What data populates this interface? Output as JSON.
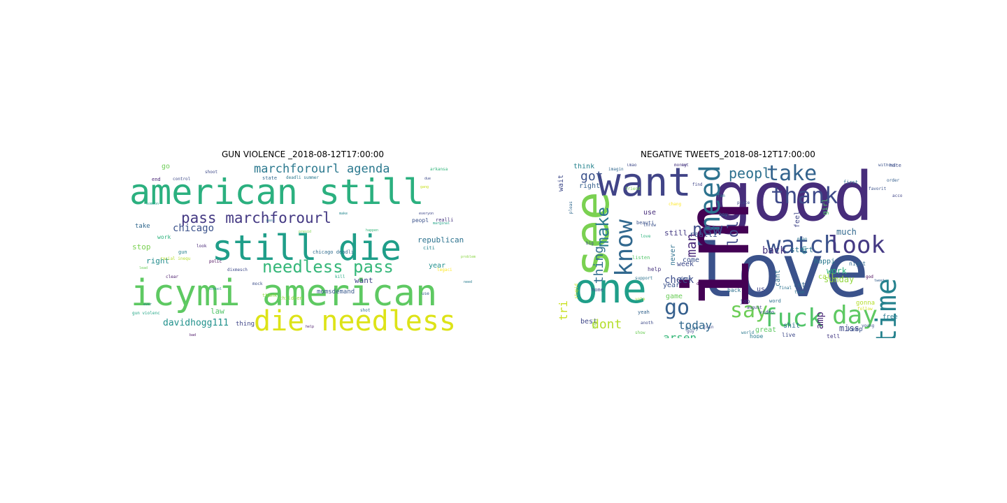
{
  "figure": {
    "panels": [
      {
        "title": "GUN VIOLENCE _2018-08-12T17:00:00"
      },
      {
        "title": "NEGATIVE TWEETS_2018-08-12T17:00:00"
      }
    ]
  },
  "wordclouds": [
    {
      "words": [
        {
          "text": "american still",
          "color": "#2bb07f"
        },
        {
          "text": "still die",
          "color": "#1f9e89"
        },
        {
          "text": "icymi american",
          "color": "#5ec962"
        },
        {
          "text": "die needless",
          "color": "#dde318"
        },
        {
          "text": "needless pass",
          "color": "#35b779"
        },
        {
          "text": "pass marchforourl",
          "color": "#443983"
        },
        {
          "text": "marchforourl agenda",
          "color": "#2a788e"
        },
        {
          "text": "davidhogg111",
          "color": "#21918c"
        },
        {
          "text": "chicago",
          "color": "#3b528b"
        },
        {
          "text": "republican",
          "color": "#2c728e"
        },
        {
          "text": "stop",
          "color": "#7ad151"
        },
        {
          "text": "right",
          "color": "#228c8d"
        },
        {
          "text": "law",
          "color": "#52c569"
        },
        {
          "text": "year",
          "color": "#218f8d"
        },
        {
          "text": "want",
          "color": "#414487"
        },
        {
          "text": "momsdemand",
          "color": "#38598c"
        },
        {
          "text": "go",
          "color": "#6ece58"
        },
        {
          "text": "take",
          "color": "#31688e"
        },
        {
          "text": "work",
          "color": "#2db27d"
        },
        {
          "text": "gun",
          "color": "#26828e"
        },
        {
          "text": "end",
          "color": "#482475"
        },
        {
          "text": "state",
          "color": "#31688e"
        },
        {
          "text": "control",
          "color": "#3e4a89"
        },
        {
          "text": "children",
          "color": "#93d741"
        },
        {
          "text": "thank",
          "color": "#8fd744"
        },
        {
          "text": "thing",
          "color": "#404688"
        },
        {
          "text": "peopl",
          "color": "#3b528b"
        },
        {
          "text": "use",
          "color": "#355f8d"
        },
        {
          "text": "citi",
          "color": "#25838e"
        },
        {
          "text": "realli",
          "color": "#46337e"
        },
        {
          "text": "chicago deadli",
          "color": "#2f6c8e"
        },
        {
          "text": "racial inequ",
          "color": "#b5de2b"
        },
        {
          "text": "shoot",
          "color": "#3e4a89"
        },
        {
          "text": "gun violenc",
          "color": "#21a685"
        },
        {
          "text": "polic",
          "color": "#440154"
        },
        {
          "text": "deadli summer",
          "color": "#2a788e"
        },
        {
          "text": "school",
          "color": "#26818e"
        },
        {
          "text": "gang",
          "color": "#c8e020"
        },
        {
          "text": "legaci",
          "color": "#fde725"
        },
        {
          "text": "dixmesch",
          "color": "#3e4989"
        },
        {
          "text": "look",
          "color": "#482878"
        },
        {
          "text": "mock",
          "color": "#3d4e8a"
        },
        {
          "text": "clear",
          "color": "#48186a"
        },
        {
          "text": "shot",
          "color": "#2e6f8e"
        },
        {
          "text": "arkansa",
          "color": "#31b57b"
        },
        {
          "text": "problem",
          "color": "#8bd646"
        },
        {
          "text": "need",
          "color": "#287c8e"
        },
        {
          "text": "kill",
          "color": "#23a983"
        },
        {
          "text": "lead",
          "color": "#6ccd5a"
        },
        {
          "text": "bad",
          "color": "#471063"
        },
        {
          "text": "someon",
          "color": "#1fa088"
        },
        {
          "text": "marginal",
          "color": "#20a386"
        },
        {
          "text": "everyon",
          "color": "#3f4889"
        },
        {
          "text": "make",
          "color": "#24878e"
        },
        {
          "text": "happen",
          "color": "#35b779"
        },
        {
          "text": "presid",
          "color": "#7fd34e"
        },
        {
          "text": "due",
          "color": "#3e4c8a"
        },
        {
          "text": "mass",
          "color": "#2d708e"
        },
        {
          "text": "help",
          "color": "#481769"
        },
        {
          "text": "ever",
          "color": "#277f8e"
        }
      ]
    },
    {
      "words": [
        {
          "text": "good",
          "color": "#472d7b"
        },
        {
          "text": "love",
          "color": "#3b528b"
        },
        {
          "text": "im",
          "color": "#440154"
        },
        {
          "text": "want",
          "color": "#414487"
        },
        {
          "text": "see",
          "color": "#7ad151"
        },
        {
          "text": "one",
          "color": "#1f9e89"
        },
        {
          "text": "need",
          "color": "#2c728e"
        },
        {
          "text": "know",
          "color": "#31688e"
        },
        {
          "text": "take",
          "color": "#33638d"
        },
        {
          "text": "watch",
          "color": "#3b528b"
        },
        {
          "text": "thank",
          "color": "#3e4a89"
        },
        {
          "text": "look",
          "color": "#443983"
        },
        {
          "text": "day",
          "color": "#5ec962"
        },
        {
          "text": "time",
          "color": "#26828e"
        },
        {
          "text": "fuck",
          "color": "#52c569"
        },
        {
          "text": "say",
          "color": "#6ece58"
        },
        {
          "text": "go",
          "color": "#355f8d"
        },
        {
          "text": "make",
          "color": "#2a788e"
        },
        {
          "text": "new",
          "color": "#3e4c8a"
        },
        {
          "text": "peopl",
          "color": "#2d708e"
        },
        {
          "text": "got",
          "color": "#3b528b"
        },
        {
          "text": "lol",
          "color": "#3f4889"
        },
        {
          "text": "man",
          "color": "#482878"
        },
        {
          "text": "thing",
          "color": "#2f6c8e"
        },
        {
          "text": "dont",
          "color": "#b5de2b"
        },
        {
          "text": "today",
          "color": "#31688e"
        },
        {
          "text": "arsen",
          "color": "#35b779"
        },
        {
          "text": "back",
          "color": "#46337e"
        },
        {
          "text": "work",
          "color": "#2db27d"
        },
        {
          "text": "amp",
          "color": "#482475"
        },
        {
          "text": "check",
          "color": "#3d4e8a"
        },
        {
          "text": "tri",
          "color": "#c8e020"
        },
        {
          "text": "think",
          "color": "#25838e"
        },
        {
          "text": "right",
          "color": "#355f8d"
        },
        {
          "text": "wait",
          "color": "#3e4989"
        },
        {
          "text": "still",
          "color": "#443983"
        },
        {
          "text": "realli",
          "color": "#3b528b"
        },
        {
          "text": "much",
          "color": "#31688e"
        },
        {
          "text": "start",
          "color": "#2c728e"
        },
        {
          "text": "sunday",
          "color": "#93d741"
        },
        {
          "text": "miss",
          "color": "#3f4889"
        },
        {
          "text": "great",
          "color": "#5ec962"
        },
        {
          "text": "happi",
          "color": "#2a788e"
        },
        {
          "text": "call",
          "color": "#a0da39"
        },
        {
          "text": "let",
          "color": "#33638d"
        },
        {
          "text": "us",
          "color": "#404688"
        },
        {
          "text": "oh",
          "color": "#287c8e"
        },
        {
          "text": "cant",
          "color": "#2e6f8e"
        },
        {
          "text": "girl",
          "color": "#52c569"
        },
        {
          "text": "year",
          "color": "#3b528b"
        },
        {
          "text": "week",
          "color": "#3e4a89"
        },
        {
          "text": "feel",
          "color": "#404688"
        },
        {
          "text": "game",
          "color": "#6ccd5a"
        },
        {
          "text": "never",
          "color": "#2d708e"
        },
        {
          "text": "best",
          "color": "#3f4788"
        },
        {
          "text": "play",
          "color": "#31688e"
        },
        {
          "text": "come",
          "color": "#3b528b"
        },
        {
          "text": "don",
          "color": "#440154"
        },
        {
          "text": "use",
          "color": "#472d7b"
        },
        {
          "text": "shit",
          "color": "#2c728e"
        },
        {
          "text": "free",
          "color": "#2a788e"
        },
        {
          "text": "help",
          "color": "#46337e"
        },
        {
          "text": "keep",
          "color": "#3b528b"
        },
        {
          "text": "tweet",
          "color": "#355f8d"
        },
        {
          "text": "home",
          "color": "#3e4c8a"
        },
        {
          "text": "job",
          "color": "#3f4889"
        },
        {
          "text": "back",
          "color": "#2d708e"
        },
        {
          "text": "hope",
          "color": "#287c8e"
        },
        {
          "text": "live",
          "color": "#3e4989"
        },
        {
          "text": "night",
          "color": "#31688e"
        },
        {
          "text": "first",
          "color": "#2e6f8e"
        },
        {
          "text": "done",
          "color": "#3b528b"
        },
        {
          "text": "listen",
          "color": "#52c569"
        },
        {
          "text": "yeah",
          "color": "#33638d"
        },
        {
          "text": "lot",
          "color": "#443983"
        },
        {
          "text": "find",
          "color": "#404688"
        },
        {
          "text": "fan",
          "color": "#2a788e"
        },
        {
          "text": "place",
          "color": "#3e4a89"
        },
        {
          "text": "boy",
          "color": "#31688e"
        },
        {
          "text": "order",
          "color": "#355f8d"
        },
        {
          "text": "final",
          "color": "#2c728e"
        },
        {
          "text": "video",
          "color": "#3b528b"
        },
        {
          "text": "hate",
          "color": "#3e4c8a"
        },
        {
          "text": "word",
          "color": "#2d708e"
        },
        {
          "text": "gonna",
          "color": "#b5de2b"
        },
        {
          "text": "tell",
          "color": "#443983"
        },
        {
          "text": "favorit",
          "color": "#3b528b"
        },
        {
          "text": "account",
          "color": "#404688"
        },
        {
          "text": "god",
          "color": "#440154"
        },
        {
          "text": "big",
          "color": "#3e4a89"
        },
        {
          "text": "babi",
          "color": "#93d741"
        },
        {
          "text": "guy",
          "color": "#3f4889"
        },
        {
          "text": "follow",
          "color": "#d2e21b"
        },
        {
          "text": "love",
          "color": "#2db27d"
        },
        {
          "text": "beauti",
          "color": "#3b528b"
        },
        {
          "text": "support",
          "color": "#2c728e"
        },
        {
          "text": "pleas",
          "color": "#31688e"
        },
        {
          "text": "world",
          "color": "#2a788e"
        },
        {
          "text": "join",
          "color": "#3e4c8a"
        },
        {
          "text": "stupid",
          "color": "#c8e020"
        },
        {
          "text": "friend",
          "color": "#7ad151"
        },
        {
          "text": "money",
          "color": "#46337e"
        },
        {
          "text": "without",
          "color": "#3b528b"
        },
        {
          "text": "august",
          "color": "#404688"
        },
        {
          "text": "team",
          "color": "#2d708e"
        },
        {
          "text": "anoth",
          "color": "#3e4a89"
        },
        {
          "text": "show",
          "color": "#6ece58"
        },
        {
          "text": "vote",
          "color": "#a0da39"
        },
        {
          "text": "lmao",
          "color": "#3e4989"
        },
        {
          "text": "imagin",
          "color": "#31688e"
        },
        {
          "text": "throw",
          "color": "#3b528b"
        },
        {
          "text": "chang",
          "color": "#fde725"
        },
        {
          "text": "mean",
          "color": "#2c728e"
        },
        {
          "text": "young",
          "color": "#3b528b"
        },
        {
          "text": "black",
          "color": "#404688"
        }
      ]
    }
  ]
}
